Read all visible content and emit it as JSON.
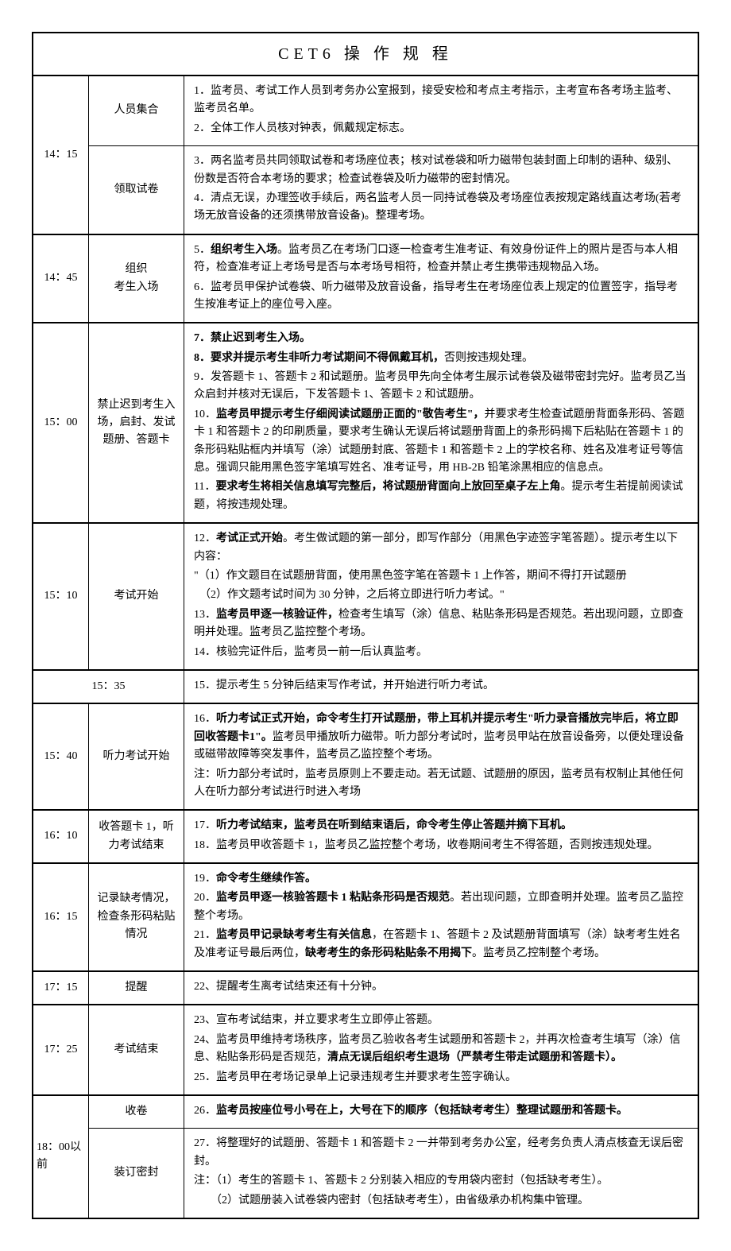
{
  "title": "CET6 操 作 规 程",
  "layout": {
    "time_col_width": 70,
    "activity_col_width": 120,
    "border_color": "#000000",
    "background_color": "#ffffff",
    "text_color": "#000000",
    "font_size": 14,
    "title_font_size": 20
  },
  "rows": [
    {
      "time": "14：15",
      "subrows": [
        {
          "activity": "人员集合",
          "content": [
            {
              "text": "1．监考员、考试工作人员到考务办公室报到，接受安检和考点主考指示，主考宣布各考场主监考、监考员名单。"
            },
            {
              "text": "2．全体工作人员核对钟表，佩戴规定标志。"
            }
          ]
        },
        {
          "activity": "领取试卷",
          "content": [
            {
              "text": "3．两名监考员共同领取试卷和考场座位表；核对试卷袋和听力磁带包装封面上印制的语种、级别、份数是否符合本考场的要求；检查试卷袋及听力磁带的密封情况。"
            },
            {
              "text": "4．清点无误，办理签收手续后，两名监考人员一同持试卷袋及考场座位表按规定路线直达考场(若考场无放音设备的还须携带放音设备)。整理考场。"
            }
          ]
        }
      ]
    },
    {
      "time": "14：45",
      "activity": "组织\n考生入场",
      "content": [
        {
          "pre": "5．",
          "bold": "组织考生入场",
          "post": "。监考员乙在考场门口逐一检查考生准考证、有效身份证件上的照片是否与本人相符，检查准考证上考场号是否与本考场号相符，检查并禁止考生携带违规物品入场。"
        },
        {
          "text": "6．监考员甲保护试卷袋、听力磁带及放音设备，指导考生在考场座位表上规定的位置签字，指导考生按准考证上的座位号入座。"
        }
      ]
    },
    {
      "time": "15：00",
      "activity": "禁止迟到考生入场，启封、发试题册、答题卡",
      "content": [
        {
          "bold": "7．禁止迟到考生入场。"
        },
        {
          "bold": "8．要求并提示考生非听力考试期间不得佩戴耳机，",
          "post": "否则按违规处理。"
        },
        {
          "text": "9．发答题卡 1、答题卡 2 和试题册。监考员甲先向全体考生展示试卷袋及磁带密封完好。监考员乙当众启封并核对无误后，下发答题卡 1、答题卡 2 和试题册。"
        },
        {
          "pre": "10．",
          "bold": "监考员甲提示考生仔细阅读试题册正面的\"敬告考生\"，",
          "post": "并要求考生检查试题册背面条形码、答题卡 1 和答题卡 2 的印刷质量，要求考生确认无误后将试题册背面上的条形码揭下后粘贴在答题卡 1 的条形码粘贴框内并填写（涂）试题册封底、答题卡 1 和答题卡 2 上的学校名称、姓名及准考证号等信息。强调只能用黑色签字笔填写姓名、准考证号，用 HB-2B 铅笔涂黑相应的信息点。"
        },
        {
          "pre": "11．",
          "bold": "要求考生将相关信息填写完整后，将试题册背面向上放回至桌子左上角",
          "post": "。提示考生若提前阅读试题，将按违规处理。"
        }
      ]
    },
    {
      "time": "15：10",
      "activity": "考试开始",
      "content": [
        {
          "pre": "12．",
          "bold": "考试正式开始",
          "post": "。考生做试题的第一部分，即写作部分（用黑色字迹签字笔答题）。提示考生以下内容："
        },
        {
          "text": "\"（1）作文题目在试题册背面，使用黑色签字笔在答题卡 1 上作答，期间不得打开试题册"
        },
        {
          "text": "　（2）作文题考试时间为 30 分钟，之后将立即进行听力考试。\""
        },
        {
          "pre": "13．",
          "bold": "监考员甲逐一核验证件，",
          "post": "检查考生填写（涂）信息、粘贴条形码是否规范。若出现问题，立即查明并处理。监考员乙监控整个考场。"
        },
        {
          "text": "14．核验完证件后，监考员一前一后认真监考。"
        }
      ]
    },
    {
      "merged_time_activity": "15：35",
      "content": [
        {
          "text": "15．提示考生 5 分钟后结束写作考试，并开始进行听力考试。"
        }
      ]
    },
    {
      "time": "15：40",
      "activity": "听力考试开始",
      "content": [
        {
          "pre": "16．",
          "bold": "听力考试正式开始，命令考生打开试题册，带上耳机并提示考生\"听力录音播放完毕后，将立即回收答题卡1\"。",
          "post": "监考员甲播放听力磁带。听力部分考试时，监考员甲站在放音设备旁，以便处理设备或磁带故障等突发事件，监考员乙监控整个考场。"
        },
        {
          "text": "注：听力部分考试时，监考员原则上不要走动。若无试题、试题册的原因，监考员有权制止其他任何人在听力部分考试进行时进入考场"
        }
      ]
    },
    {
      "time": "16：10",
      "activity": "收答题卡 1，听力考试结束",
      "content": [
        {
          "pre": "17．",
          "bold": "听力考试结束，监考员在听到结束语后，命令考生停止答题并摘下耳机。"
        },
        {
          "text": "18．监考员甲收答题卡 1，监考员乙监控整个考场，收卷期间考生不得答题，否则按违规处理。"
        }
      ]
    },
    {
      "time": "16：15",
      "activity": "记录缺考情况，检查条形码粘贴情况",
      "content": [
        {
          "pre": "19．",
          "bold": "命令考生继续作答。"
        },
        {
          "pre": "20．",
          "bold": "监考员甲逐一核验答题卡 1 粘贴条形码是否规范",
          "post": "。若出现问题，立即查明并处理。监考员乙监控整个考场。"
        },
        {
          "pre": "21．",
          "bold": "监考员甲记录缺考考生有关信息",
          "post": "，在答题卡 1、答题卡 2 及试题册背面填写（涂）缺考考生姓名及准考证号最后两位，",
          "bold2": "缺考考生的条形码粘贴条不用揭下",
          "post2": "。监考员乙控制整个考场。"
        }
      ]
    },
    {
      "time": "17：15",
      "activity": "提醒",
      "content": [
        {
          "text": "22、提醒考生离考试结束还有十分钟。"
        }
      ]
    },
    {
      "time": "17：25",
      "activity": "考试结束",
      "content": [
        {
          "text": "23、宣布考试结束，并立要求考生立即停止答题。"
        },
        {
          "pre": "24、监考员甲维持考场秩序，监考员乙验收各考生试题册和答题卡 2，并再次检查考生填写（涂）信息、粘贴条形码是否规范，",
          "bold": "清点无误后组织考生退场（严禁考生带走试题册和答题卡）。"
        },
        {
          "text": "25．监考员甲在考场记录单上记录违规考生并要求考生签字确认。"
        }
      ]
    },
    {
      "time": "18：00以前",
      "subrows": [
        {
          "activity": "收卷",
          "content": [
            {
              "pre": "26．",
              "bold": "监考员按座位号小号在上，大号在下的顺序（包括缺考考生）整理试题册和答题卡。"
            }
          ]
        },
        {
          "activity": "装订密封",
          "content": [
            {
              "text": "27．将整理好的试题册、答题卡 1 和答题卡 2 一并带到考务办公室，经考务负责人清点核查无误后密封。"
            },
            {
              "text": "注：（1）考生的答题卡 1、答题卡 2 分别装入相应的专用袋内密封（包括缺考考生）。"
            },
            {
              "text": "　　（2）试题册装入试卷袋内密封（包括缺考考生），由省级承办机构集中管理。"
            }
          ]
        }
      ]
    }
  ]
}
